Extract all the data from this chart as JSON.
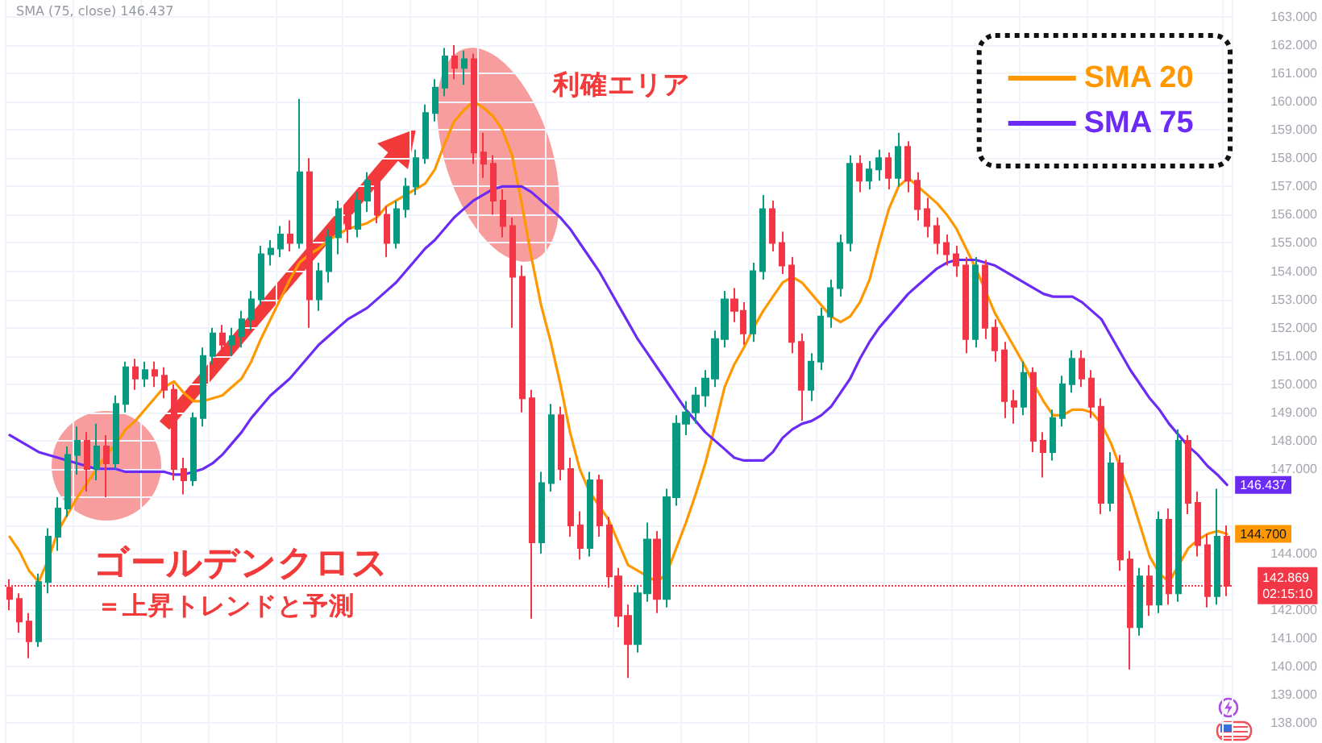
{
  "chart_data": {
    "type": "candlestick",
    "categories": [
      null,
      null,
      null,
      null,
      null,
      null,
      null,
      null,
      null,
      null,
      null,
      null,
      null,
      null,
      null,
      null,
      null,
      null,
      null,
      null,
      null,
      null,
      null,
      null,
      null,
      null,
      null,
      null,
      null,
      null,
      null,
      null,
      null,
      null,
      null,
      null,
      null,
      null,
      null,
      null,
      null,
      null,
      null,
      null,
      null,
      null,
      null,
      null,
      null,
      null,
      null,
      null,
      null,
      null,
      null,
      null,
      null,
      null,
      null,
      null,
      null,
      null,
      null,
      null,
      null,
      null,
      null,
      null,
      null,
      null,
      null,
      null,
      null,
      null,
      null,
      null,
      null,
      null,
      null,
      null,
      null,
      null,
      null,
      null,
      null,
      null,
      null,
      null,
      null,
      null,
      null,
      null,
      null,
      null,
      null,
      null,
      null,
      null,
      null,
      null,
      null,
      null,
      null,
      null,
      null,
      null,
      null,
      null,
      null,
      null,
      null,
      null,
      null,
      null,
      null,
      null,
      null,
      null,
      null,
      null,
      null,
      null,
      null,
      null,
      null,
      null,
      null
    ],
    "ohlc": [
      [
        142.8,
        143.1,
        142.0,
        142.4
      ],
      [
        142.4,
        142.6,
        141.2,
        141.6
      ],
      [
        141.6,
        141.9,
        140.3,
        140.9
      ],
      [
        140.9,
        143.3,
        140.7,
        143.0
      ],
      [
        143.0,
        144.9,
        142.6,
        144.6
      ],
      [
        144.6,
        146.0,
        144.1,
        145.6
      ],
      [
        145.6,
        147.8,
        145.3,
        147.5
      ],
      [
        147.5,
        148.5,
        146.8,
        148.0
      ],
      [
        148.0,
        148.3,
        146.2,
        147.0
      ],
      [
        147.0,
        148.6,
        146.6,
        147.8
      ],
      [
        147.8,
        148.2,
        146.0,
        147.2
      ],
      [
        147.2,
        149.6,
        147.0,
        149.3
      ],
      [
        149.3,
        150.8,
        149.0,
        150.6
      ],
      [
        150.6,
        150.9,
        149.8,
        150.2
      ],
      [
        150.2,
        150.8,
        149.9,
        150.5
      ],
      [
        150.5,
        150.8,
        149.9,
        150.3
      ],
      [
        150.3,
        150.6,
        149.5,
        149.8
      ],
      [
        149.8,
        150.0,
        146.6,
        147.0
      ],
      [
        147.0,
        147.4,
        146.1,
        146.6
      ],
      [
        146.6,
        149.0,
        146.4,
        148.8
      ],
      [
        148.8,
        151.3,
        148.5,
        151.0
      ],
      [
        151.0,
        152.0,
        150.7,
        151.8
      ],
      [
        151.8,
        152.1,
        151.0,
        151.4
      ],
      [
        151.4,
        152.0,
        151.0,
        151.7
      ],
      [
        151.7,
        152.6,
        151.3,
        152.3
      ],
      [
        152.3,
        153.3,
        151.9,
        153.0
      ],
      [
        153.0,
        154.9,
        152.8,
        154.6
      ],
      [
        154.6,
        155.1,
        154.2,
        154.8
      ],
      [
        154.8,
        155.6,
        154.5,
        155.3
      ],
      [
        155.3,
        155.8,
        154.7,
        155.0
      ],
      [
        155.0,
        160.1,
        154.8,
        157.5
      ],
      [
        157.5,
        158.0,
        152.0,
        153.0
      ],
      [
        153.0,
        154.3,
        152.6,
        154.0
      ],
      [
        154.0,
        155.5,
        153.6,
        155.2
      ],
      [
        155.2,
        156.5,
        154.6,
        156.2
      ],
      [
        156.2,
        156.4,
        155.0,
        155.5
      ],
      [
        155.5,
        156.8,
        155.2,
        156.5
      ],
      [
        156.5,
        157.5,
        156.1,
        157.2
      ],
      [
        157.2,
        157.4,
        155.7,
        156.0
      ],
      [
        156.0,
        156.3,
        154.5,
        155.0
      ],
      [
        155.0,
        156.5,
        154.8,
        156.2
      ],
      [
        156.2,
        157.3,
        155.9,
        157.0
      ],
      [
        157.0,
        158.3,
        156.7,
        158.0
      ],
      [
        158.0,
        159.9,
        157.8,
        159.6
      ],
      [
        159.6,
        160.8,
        159.3,
        160.5
      ],
      [
        160.5,
        161.9,
        160.2,
        161.6
      ],
      [
        161.6,
        162.0,
        160.8,
        161.2
      ],
      [
        161.2,
        161.8,
        160.6,
        161.5
      ],
      [
        161.5,
        161.7,
        157.8,
        158.2
      ],
      [
        158.2,
        158.9,
        157.3,
        157.8
      ],
      [
        157.8,
        158.1,
        156.0,
        156.5
      ],
      [
        156.5,
        156.9,
        155.2,
        155.6
      ],
      [
        155.6,
        155.9,
        152.0,
        153.8
      ],
      [
        153.8,
        154.2,
        149.0,
        149.5
      ],
      [
        149.5,
        149.8,
        141.7,
        144.4
      ],
      [
        144.4,
        146.9,
        144.0,
        146.5
      ],
      [
        146.5,
        149.3,
        146.2,
        148.9
      ],
      [
        148.9,
        149.2,
        146.6,
        147.0
      ],
      [
        147.0,
        147.4,
        144.6,
        145.0
      ],
      [
        145.0,
        145.5,
        143.8,
        144.2
      ],
      [
        144.2,
        146.9,
        143.9,
        146.6
      ],
      [
        146.6,
        146.8,
        144.6,
        145.0
      ],
      [
        145.0,
        145.3,
        142.8,
        143.2
      ],
      [
        143.2,
        143.5,
        141.4,
        141.8
      ],
      [
        141.8,
        142.2,
        139.6,
        140.8
      ],
      [
        140.8,
        142.9,
        140.5,
        142.6
      ],
      [
        142.6,
        145.1,
        142.3,
        144.5
      ],
      [
        144.5,
        144.8,
        141.9,
        142.4
      ],
      [
        142.4,
        146.3,
        142.1,
        146.0
      ],
      [
        146.0,
        148.9,
        145.7,
        148.6
      ],
      [
        148.6,
        149.4,
        148.2,
        149.0
      ],
      [
        149.0,
        149.9,
        148.6,
        149.6
      ],
      [
        149.6,
        150.5,
        149.2,
        150.2
      ],
      [
        150.2,
        151.9,
        149.9,
        151.6
      ],
      [
        151.6,
        153.3,
        151.3,
        153.0
      ],
      [
        153.0,
        153.4,
        152.2,
        152.6
      ],
      [
        152.6,
        152.9,
        151.4,
        151.8
      ],
      [
        151.8,
        154.3,
        151.5,
        154.0
      ],
      [
        154.0,
        156.7,
        153.7,
        156.2
      ],
      [
        156.2,
        156.5,
        154.7,
        155.0
      ],
      [
        155.0,
        155.4,
        153.9,
        154.2
      ],
      [
        154.2,
        154.5,
        151.1,
        151.5
      ],
      [
        151.5,
        151.8,
        148.7,
        149.8
      ],
      [
        149.8,
        151.1,
        149.4,
        150.8
      ],
      [
        150.8,
        152.7,
        150.5,
        152.4
      ],
      [
        152.4,
        153.7,
        152.0,
        153.4
      ],
      [
        153.4,
        155.3,
        153.1,
        155.0
      ],
      [
        155.0,
        158.1,
        154.7,
        157.8
      ],
      [
        157.8,
        158.1,
        156.8,
        157.2
      ],
      [
        157.2,
        157.9,
        156.9,
        157.6
      ],
      [
        157.6,
        158.3,
        157.2,
        158.0
      ],
      [
        158.0,
        158.2,
        156.9,
        157.3
      ],
      [
        157.3,
        158.9,
        157.0,
        158.4
      ],
      [
        158.4,
        158.6,
        156.8,
        157.2
      ],
      [
        157.2,
        157.5,
        155.8,
        156.2
      ],
      [
        156.2,
        156.6,
        155.2,
        155.6
      ],
      [
        155.6,
        155.9,
        154.6,
        155.0
      ],
      [
        155.0,
        155.3,
        154.2,
        154.6
      ],
      [
        154.6,
        154.9,
        153.8,
        154.2
      ],
      [
        154.2,
        154.5,
        151.1,
        151.6
      ],
      [
        151.6,
        154.5,
        151.3,
        154.2
      ],
      [
        154.2,
        154.4,
        151.6,
        152.0
      ],
      [
        152.0,
        152.3,
        150.8,
        151.2
      ],
      [
        151.2,
        151.5,
        148.8,
        149.4
      ],
      [
        149.4,
        149.8,
        148.6,
        149.2
      ],
      [
        149.2,
        150.8,
        148.9,
        150.4
      ],
      [
        150.4,
        150.6,
        147.6,
        148.0
      ],
      [
        148.0,
        148.3,
        146.7,
        147.6
      ],
      [
        147.6,
        149.1,
        147.3,
        148.8
      ],
      [
        148.8,
        150.3,
        148.5,
        150.0
      ],
      [
        150.0,
        151.2,
        149.7,
        150.9
      ],
      [
        150.9,
        151.2,
        149.9,
        150.2
      ],
      [
        150.2,
        150.5,
        148.8,
        149.2
      ],
      [
        149.2,
        149.5,
        145.4,
        145.8
      ],
      [
        145.8,
        147.6,
        145.5,
        147.2
      ],
      [
        147.2,
        147.5,
        143.4,
        143.8
      ],
      [
        143.8,
        144.1,
        139.9,
        141.4
      ],
      [
        141.4,
        143.5,
        141.1,
        143.2
      ],
      [
        143.2,
        143.6,
        141.8,
        142.2
      ],
      [
        142.2,
        145.5,
        141.9,
        145.2
      ],
      [
        145.2,
        145.6,
        142.2,
        142.6
      ],
      [
        142.6,
        148.4,
        142.3,
        148.0
      ],
      [
        148.0,
        148.2,
        145.4,
        145.8
      ],
      [
        145.8,
        146.2,
        143.9,
        144.3
      ],
      [
        144.3,
        144.7,
        142.1,
        142.5
      ],
      [
        142.5,
        146.3,
        142.2,
        144.6
      ],
      [
        144.6,
        145.0,
        142.5,
        142.869
      ]
    ],
    "colors": [
      "#f23645",
      "#f23645",
      "#f23645",
      "#089981",
      "#089981",
      "#089981",
      "#089981",
      "#089981",
      "#f23645",
      "#089981",
      "#f23645",
      "#089981",
      "#089981",
      "#f23645",
      "#089981",
      "#f23645",
      "#f23645",
      "#f23645",
      "#f23645",
      "#089981",
      "#089981",
      "#089981",
      "#f23645",
      "#089981",
      "#089981",
      "#089981",
      "#089981",
      "#089981",
      "#089981",
      "#f23645",
      "#089981",
      "#f23645",
      "#089981",
      "#089981",
      "#089981",
      "#f23645",
      "#089981",
      "#089981",
      "#f23645",
      "#f23645",
      "#089981",
      "#089981",
      "#089981",
      "#089981",
      "#089981",
      "#089981",
      "#f23645",
      "#089981",
      "#f23645",
      "#f23645",
      "#f23645",
      "#f23645",
      "#f23645",
      "#f23645",
      "#f23645",
      "#089981",
      "#089981",
      "#f23645",
      "#f23645",
      "#f23645",
      "#089981",
      "#f23645",
      "#f23645",
      "#f23645",
      "#f23645",
      "#089981",
      "#089981",
      "#f23645",
      "#089981",
      "#089981",
      "#089981",
      "#089981",
      "#089981",
      "#089981",
      "#089981",
      "#f23645",
      "#f23645",
      "#089981",
      "#089981",
      "#f23645",
      "#f23645",
      "#f23645",
      "#f23645",
      "#089981",
      "#089981",
      "#089981",
      "#089981",
      "#089981",
      "#f23645",
      "#089981",
      "#089981",
      "#f23645",
      "#089981",
      "#f23645",
      "#f23645",
      "#f23645",
      "#f23645",
      "#f23645",
      "#f23645",
      "#f23645",
      "#089981",
      "#f23645",
      "#f23645",
      "#f23645",
      "#f23645",
      "#089981",
      "#f23645",
      "#f23645",
      "#089981",
      "#089981",
      "#089981",
      "#f23645",
      "#f23645",
      "#f23645",
      "#089981",
      "#f23645",
      "#f23645",
      "#089981",
      "#f23645",
      "#089981",
      "#f23645",
      "#089981",
      "#f23645",
      "#f23645",
      "#f23645",
      "#089981",
      "#f23645"
    ],
    "series": [
      {
        "type": "line",
        "name": "SMA 20",
        "color": "#ff9800",
        "values": [
          144.6,
          144.1,
          143.4,
          143.0,
          143.8,
          144.8,
          145.4,
          146.0,
          146.5,
          147.0,
          147.5,
          147.9,
          148.4,
          148.7,
          149.1,
          149.5,
          149.9,
          150.1,
          149.7,
          149.4,
          149.4,
          149.5,
          149.6,
          149.9,
          150.2,
          150.8,
          151.6,
          152.3,
          153.0,
          153.7,
          154.3,
          154.6,
          154.8,
          155.1,
          155.3,
          155.5,
          155.6,
          155.7,
          155.9,
          156.3,
          156.5,
          156.7,
          156.9,
          157.1,
          157.6,
          158.5,
          159.3,
          159.7,
          160.0,
          159.8,
          159.5,
          159.0,
          158.1,
          156.4,
          154.5,
          152.8,
          151.5,
          150.0,
          148.3,
          147.0,
          146.2,
          145.7,
          145.2,
          144.4,
          143.6,
          143.4,
          143.2,
          143.0,
          143.3,
          144.2,
          145.1,
          146.1,
          147.2,
          148.5,
          149.9,
          150.7,
          151.3,
          152.0,
          152.6,
          153.1,
          153.6,
          153.8,
          153.6,
          153.2,
          152.8,
          152.4,
          152.2,
          152.4,
          152.9,
          153.7,
          155.0,
          156.2,
          157.0,
          157.3,
          157.0,
          156.7,
          156.4,
          156.0,
          155.5,
          154.8,
          154.1,
          153.3,
          152.5,
          151.9,
          151.3,
          150.7,
          150.0,
          149.4,
          148.9,
          148.9,
          149.1,
          149.1,
          149.0,
          148.6,
          147.9,
          147.0,
          146.1,
          145.0,
          143.9,
          143.3,
          143.0,
          143.6,
          144.2,
          144.5,
          144.7,
          144.8,
          144.7
        ],
        "value_labels": [
          null,
          null,
          null,
          null,
          null,
          null,
          null,
          null,
          null,
          null,
          null,
          null,
          null,
          null,
          null,
          null,
          null,
          null,
          null,
          null,
          null,
          null,
          null,
          null,
          null,
          null,
          null,
          null,
          null,
          null,
          null,
          null,
          null,
          null,
          null,
          null,
          null,
          null,
          null,
          null,
          null,
          null,
          null,
          null,
          null,
          null,
          null,
          null,
          null,
          null,
          null,
          null,
          null,
          null,
          null,
          null,
          null,
          null,
          null,
          null,
          null,
          null,
          null,
          null,
          null,
          null,
          null,
          null,
          null,
          null,
          null,
          null,
          null,
          null,
          null,
          null,
          null,
          null,
          null,
          null,
          null,
          null,
          null,
          null,
          null,
          null,
          null,
          null,
          null,
          null,
          null,
          null,
          null,
          null,
          null,
          null,
          null,
          null,
          null,
          null,
          null,
          null,
          null,
          null,
          null,
          null,
          null,
          null,
          null,
          null,
          null,
          null,
          null,
          null,
          null,
          null,
          null,
          null,
          null,
          null,
          null,
          null,
          null,
          null,
          null,
          null,
          "144.700"
        ]
      },
      {
        "type": "line",
        "name": "SMA 75",
        "color": "#6c2bf5",
        "values": [
          148.2,
          148.0,
          147.8,
          147.6,
          147.5,
          147.4,
          147.3,
          147.2,
          147.1,
          147.0,
          147.0,
          147.0,
          146.9,
          146.9,
          146.9,
          146.9,
          146.9,
          146.8,
          146.8,
          146.9,
          147.0,
          147.2,
          147.5,
          147.9,
          148.3,
          148.8,
          149.2,
          149.6,
          149.9,
          150.2,
          150.6,
          151.0,
          151.4,
          151.7,
          152.0,
          152.3,
          152.5,
          152.7,
          153.0,
          153.3,
          153.6,
          154.0,
          154.4,
          154.8,
          155.1,
          155.5,
          155.9,
          156.2,
          156.5,
          156.7,
          156.9,
          157.0,
          157.0,
          157.0,
          156.8,
          156.5,
          156.2,
          155.9,
          155.5,
          155.0,
          154.5,
          154.0,
          153.4,
          152.8,
          152.2,
          151.6,
          151.1,
          150.6,
          150.1,
          149.6,
          149.1,
          148.7,
          148.3,
          148.0,
          147.7,
          147.4,
          147.3,
          147.3,
          147.3,
          147.6,
          148.1,
          148.4,
          148.6,
          148.7,
          148.9,
          149.2,
          149.7,
          150.2,
          150.9,
          151.5,
          152.0,
          152.4,
          152.8,
          153.2,
          153.5,
          153.8,
          154.1,
          154.3,
          154.4,
          154.4,
          154.4,
          154.3,
          154.2,
          154.0,
          153.8,
          153.6,
          153.4,
          153.2,
          153.1,
          153.1,
          153.1,
          152.9,
          152.6,
          152.3,
          151.7,
          151.1,
          150.5,
          150.0,
          149.5,
          149.1,
          148.6,
          148.2,
          147.8,
          147.5,
          147.1,
          146.8,
          146.437
        ],
        "value_labels": [
          null,
          null,
          null,
          null,
          null,
          null,
          null,
          null,
          null,
          null,
          null,
          null,
          null,
          null,
          null,
          null,
          null,
          null,
          null,
          null,
          null,
          null,
          null,
          null,
          null,
          null,
          null,
          null,
          null,
          null,
          null,
          null,
          null,
          null,
          null,
          null,
          null,
          null,
          null,
          null,
          null,
          null,
          null,
          null,
          null,
          null,
          null,
          null,
          null,
          null,
          null,
          null,
          null,
          null,
          null,
          null,
          null,
          null,
          null,
          null,
          null,
          null,
          null,
          null,
          null,
          null,
          null,
          null,
          null,
          null,
          null,
          null,
          null,
          null,
          null,
          null,
          null,
          null,
          null,
          null,
          null,
          null,
          null,
          null,
          null,
          null,
          null,
          null,
          null,
          null,
          null,
          null,
          null,
          null,
          null,
          null,
          null,
          null,
          null,
          null,
          null,
          null,
          null,
          null,
          null,
          null,
          null,
          null,
          null,
          null,
          null,
          null,
          null,
          null,
          null,
          null,
          null,
          null,
          null,
          null,
          null,
          null,
          null,
          null,
          null,
          null,
          "146.437"
        ]
      }
    ],
    "ylim": [
      137.3,
      163.6
    ],
    "yticks": [
      {
        "value": 138,
        "label": "138.000"
      },
      {
        "value": 139,
        "label": "139.000"
      },
      {
        "value": 140,
        "label": "140.000"
      },
      {
        "value": 141,
        "label": "141.000"
      },
      {
        "value": 142,
        "label": "142.000"
      },
      {
        "value": 143,
        "label": null
      },
      {
        "value": 144,
        "label": "144.000"
      },
      {
        "value": 145,
        "label": null
      },
      {
        "value": 146,
        "label": null
      },
      {
        "value": 147,
        "label": "147.000"
      },
      {
        "value": 148,
        "label": "148.000"
      },
      {
        "value": 149,
        "label": "149.000"
      },
      {
        "value": 150,
        "label": "150.000"
      },
      {
        "value": 151,
        "label": "151.000"
      },
      {
        "value": 152,
        "label": "152.000"
      },
      {
        "value": 153,
        "label": "153.000"
      },
      {
        "value": 154,
        "label": "154.000"
      },
      {
        "value": 155,
        "label": "155.000"
      },
      {
        "value": 156,
        "label": "156.000"
      },
      {
        "value": 157,
        "label": "157.000"
      },
      {
        "value": 158,
        "label": "158.000"
      },
      {
        "value": 159,
        "label": "159.000"
      },
      {
        "value": 160,
        "label": "160.000"
      },
      {
        "value": 161,
        "label": "161.000"
      },
      {
        "value": 162,
        "label": "162.000"
      },
      {
        "value": 163,
        "label": "163.000"
      }
    ],
    "ref_lines": [
      {
        "axis": "y",
        "value": 142.869,
        "label": "142.869\n02:15:10",
        "color": "#f23645",
        "line_style": "dotted"
      }
    ],
    "annotations": [
      "SMA (75, close) 146.437",
      "利確エリア",
      "ゴールデンクロス",
      "＝上昇トレンドと予測"
    ],
    "grid": true,
    "legend": "top right",
    "tick_labels": "y",
    "marker": "none"
  }
}
